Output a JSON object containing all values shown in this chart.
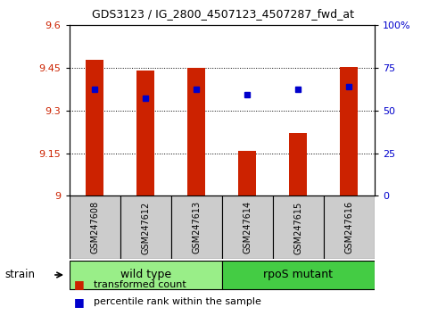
{
  "title": "GDS3123 / IG_2800_4507123_4507287_fwd_at",
  "samples": [
    "GSM247608",
    "GSM247612",
    "GSM247613",
    "GSM247614",
    "GSM247615",
    "GSM247616"
  ],
  "red_bar_heights": [
    9.48,
    9.44,
    9.45,
    9.16,
    9.22,
    9.455
  ],
  "blue_marker_y": [
    9.375,
    9.345,
    9.375,
    9.355,
    9.375,
    9.385
  ],
  "y_min": 9.0,
  "y_max": 9.6,
  "y_ticks": [
    9.0,
    9.15,
    9.3,
    9.45,
    9.6
  ],
  "y_tick_labels": [
    "9",
    "9.15",
    "9.3",
    "9.45",
    "9.6"
  ],
  "y2_ticks": [
    0,
    25,
    50,
    75,
    100
  ],
  "y2_tick_labels": [
    "0",
    "25",
    "50",
    "75",
    "100%"
  ],
  "bar_color": "#cc2200",
  "marker_color": "#0000cc",
  "wild_type_color": "#99ee88",
  "rpos_mutant_color": "#44cc44",
  "label_bg_color": "#cccccc",
  "bar_width": 0.35,
  "legend_red_label": "transformed count",
  "legend_blue_label": "percentile rank within the sample",
  "strain_label": "strain",
  "wild_type_label": "wild type",
  "rpos_mutant_label": "rpoS mutant",
  "title_fontsize": 9,
  "tick_fontsize": 8,
  "legend_fontsize": 8,
  "group_fontsize": 9
}
